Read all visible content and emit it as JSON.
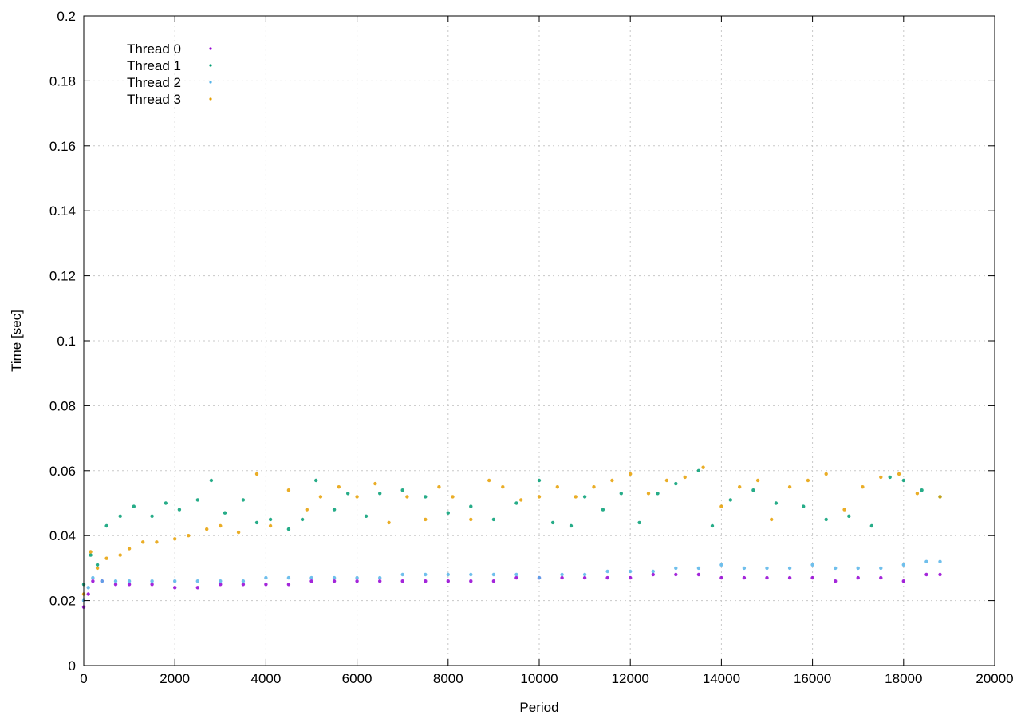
{
  "chart_data": {
    "type": "scatter",
    "xlabel": "Period",
    "ylabel": "Time [sec]",
    "xlim": [
      0,
      20000
    ],
    "ylim": [
      0,
      0.2
    ],
    "x_ticks": [
      0,
      2000,
      4000,
      6000,
      8000,
      10000,
      12000,
      14000,
      16000,
      18000,
      20000
    ],
    "y_ticks": [
      0,
      0.02,
      0.04,
      0.06,
      0.08,
      0.1,
      0.12,
      0.14,
      0.16,
      0.18,
      0.2
    ],
    "x_tick_labels": [
      "0",
      "2000",
      "4000",
      "6000",
      "8000",
      "10000",
      "12000",
      "14000",
      "16000",
      "18000",
      "20000"
    ],
    "y_tick_labels": [
      "0",
      "0.02",
      "0.04",
      "0.06",
      "0.08",
      "0.1",
      "0.12",
      "0.14",
      "0.16",
      "0.18",
      "0.2"
    ],
    "grid": true,
    "legend_position": "top-left",
    "marker": "dot",
    "series": [
      {
        "name": "Thread 0",
        "color": "#9400d3",
        "x": [
          0,
          100,
          200,
          400,
          700,
          1000,
          1500,
          2000,
          2500,
          3000,
          3500,
          4000,
          4500,
          5000,
          5500,
          6000,
          6500,
          7000,
          7500,
          8000,
          8500,
          9000,
          9500,
          10000,
          10500,
          11000,
          11500,
          12000,
          12500,
          13000,
          13500,
          14000,
          14500,
          15000,
          15500,
          16000,
          16500,
          17000,
          17500,
          18000,
          18500,
          18800
        ],
        "y": [
          0.018,
          0.022,
          0.026,
          0.026,
          0.025,
          0.025,
          0.025,
          0.024,
          0.024,
          0.025,
          0.025,
          0.025,
          0.025,
          0.026,
          0.026,
          0.026,
          0.026,
          0.026,
          0.026,
          0.026,
          0.026,
          0.026,
          0.027,
          0.027,
          0.027,
          0.027,
          0.027,
          0.027,
          0.028,
          0.028,
          0.028,
          0.027,
          0.027,
          0.027,
          0.027,
          0.027,
          0.026,
          0.027,
          0.027,
          0.026,
          0.028,
          0.028
        ]
      },
      {
        "name": "Thread 1",
        "color": "#009e73",
        "x": [
          0,
          150,
          300,
          500,
          800,
          1100,
          1500,
          1800,
          2100,
          2500,
          2800,
          3100,
          3500,
          3800,
          4100,
          4500,
          4800,
          5100,
          5500,
          5800,
          6200,
          6500,
          7000,
          7500,
          8000,
          8500,
          9000,
          9500,
          10000,
          10300,
          10700,
          11000,
          11400,
          11800,
          12200,
          12600,
          13000,
          13500,
          13800,
          14200,
          14700,
          15200,
          15800,
          16300,
          16800,
          17300,
          17700,
          18000,
          18400,
          18800
        ],
        "y": [
          0.025,
          0.034,
          0.031,
          0.043,
          0.046,
          0.049,
          0.046,
          0.05,
          0.048,
          0.051,
          0.057,
          0.047,
          0.051,
          0.044,
          0.045,
          0.042,
          0.045,
          0.057,
          0.048,
          0.053,
          0.046,
          0.053,
          0.054,
          0.052,
          0.047,
          0.049,
          0.045,
          0.05,
          0.057,
          0.044,
          0.043,
          0.052,
          0.048,
          0.053,
          0.044,
          0.053,
          0.056,
          0.06,
          0.043,
          0.051,
          0.054,
          0.05,
          0.049,
          0.045,
          0.046,
          0.043,
          0.058,
          0.057,
          0.054,
          0.052
        ]
      },
      {
        "name": "Thread 2",
        "color": "#56b4e9",
        "x": [
          0,
          100,
          200,
          400,
          700,
          1000,
          1500,
          2000,
          2500,
          3000,
          3500,
          4000,
          4500,
          5000,
          5500,
          6000,
          6500,
          7000,
          7500,
          8000,
          8500,
          9000,
          9500,
          10000,
          10500,
          11000,
          11500,
          12000,
          12500,
          13000,
          13500,
          14000,
          14500,
          15000,
          15500,
          16000,
          16500,
          17000,
          17500,
          18000,
          18500,
          18800
        ],
        "y": [
          0.02,
          0.024,
          0.027,
          0.026,
          0.026,
          0.026,
          0.026,
          0.026,
          0.026,
          0.026,
          0.026,
          0.027,
          0.027,
          0.027,
          0.027,
          0.027,
          0.027,
          0.028,
          0.028,
          0.028,
          0.028,
          0.028,
          0.028,
          0.027,
          0.028,
          0.028,
          0.029,
          0.029,
          0.029,
          0.03,
          0.03,
          0.031,
          0.03,
          0.03,
          0.03,
          0.031,
          0.03,
          0.03,
          0.03,
          0.031,
          0.032,
          0.032
        ]
      },
      {
        "name": "Thread 3",
        "color": "#e69f00",
        "x": [
          0,
          150,
          300,
          500,
          800,
          1000,
          1300,
          1600,
          2000,
          2300,
          2700,
          3000,
          3400,
          3800,
          4100,
          4500,
          4900,
          5200,
          5600,
          6000,
          6400,
          6700,
          7100,
          7500,
          7800,
          8100,
          8500,
          8900,
          9200,
          9600,
          10000,
          10400,
          10800,
          11200,
          11600,
          12000,
          12400,
          12800,
          13200,
          13600,
          14000,
          14400,
          14800,
          15100,
          15500,
          15900,
          16300,
          16700,
          17100,
          17500,
          17900,
          18300,
          18800
        ],
        "y": [
          0.022,
          0.035,
          0.03,
          0.033,
          0.034,
          0.036,
          0.038,
          0.038,
          0.039,
          0.04,
          0.042,
          0.043,
          0.041,
          0.059,
          0.043,
          0.054,
          0.048,
          0.052,
          0.055,
          0.052,
          0.056,
          0.044,
          0.052,
          0.045,
          0.055,
          0.052,
          0.045,
          0.057,
          0.055,
          0.051,
          0.052,
          0.055,
          0.052,
          0.055,
          0.057,
          0.059,
          0.053,
          0.057,
          0.058,
          0.061,
          0.049,
          0.055,
          0.057,
          0.045,
          0.055,
          0.057,
          0.059,
          0.048,
          0.055,
          0.058,
          0.059,
          0.053,
          0.052
        ]
      }
    ]
  }
}
